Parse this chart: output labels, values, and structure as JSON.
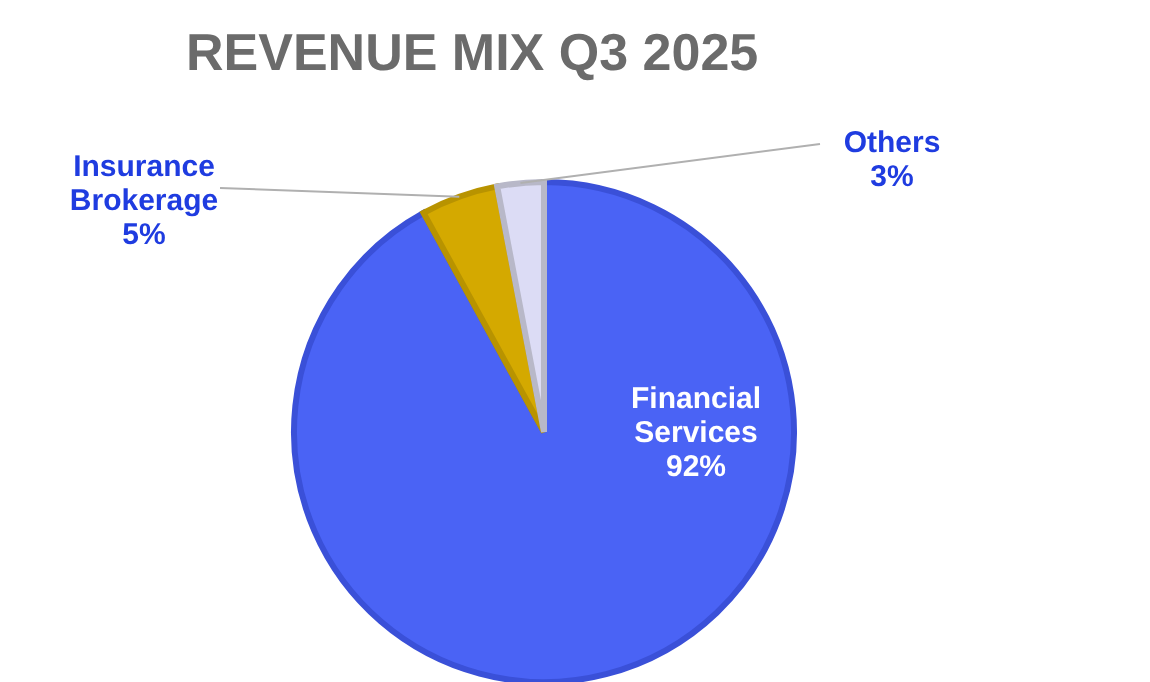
{
  "chart_data": {
    "type": "pie",
    "title": "REVENUE MIX Q3 2025",
    "categories": [
      "Financial Services",
      "Insurance Brokerage",
      "Others"
    ],
    "values": [
      92,
      5,
      3
    ],
    "colors": [
      "#4a63f5",
      "#d4a900",
      "#dcdcf5"
    ],
    "value_labels": [
      "92%",
      "5%",
      "3%"
    ],
    "legend": false
  }
}
